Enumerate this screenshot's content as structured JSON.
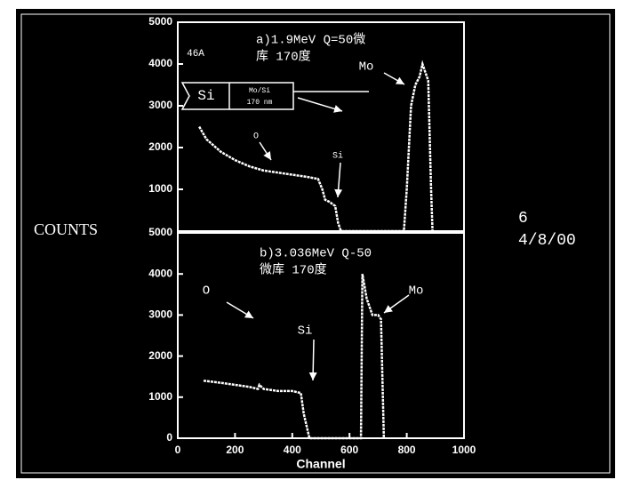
{
  "chart_data": [
    {
      "type": "line",
      "title": "a)1.9MeV Q=50微",
      "subtitle": "库    170度",
      "ylabel": "COUNTS",
      "annotations": [
        "46A",
        "Si",
        "Mo/Si",
        "170 nm",
        "Mo",
        "O",
        "Si"
      ],
      "xlim": [
        0,
        1000
      ],
      "ylim": [
        0,
        5000
      ],
      "yticks": [
        1000,
        2000,
        3000,
        4000,
        5000
      ],
      "series": [
        {
          "color": "#ffffff",
          "x": [
            75,
            100,
            150,
            200,
            250,
            300,
            350,
            400,
            450,
            490,
            505,
            515,
            530,
            550,
            560,
            570,
            790,
            800,
            815,
            830,
            845,
            855,
            865,
            875,
            885,
            890
          ],
          "values": [
            2500,
            2200,
            1900,
            1700,
            1550,
            1450,
            1400,
            1350,
            1300,
            1250,
            1000,
            750,
            700,
            600,
            200,
            0,
            0,
            1000,
            3000,
            3500,
            3700,
            4000,
            3800,
            3600,
            1000,
            0
          ]
        }
      ]
    },
    {
      "type": "line",
      "title": "b)3.036MeV Q-50",
      "subtitle": "微库 170度",
      "xlabel": "Channel",
      "annotations": [
        "O",
        "Si",
        "Mo"
      ],
      "xlim": [
        0,
        1000
      ],
      "xticks": [
        0,
        200,
        400,
        600,
        800,
        1000
      ],
      "ylim": [
        0,
        5000
      ],
      "yticks": [
        0,
        1000,
        2000,
        3000,
        4000,
        5000
      ],
      "series": [
        {
          "color": "#ffffff",
          "x": [
            90,
            150,
            200,
            250,
            280,
            285,
            300,
            350,
            400,
            430,
            440,
            450,
            460,
            640,
            645,
            660,
            680,
            700,
            710,
            720
          ],
          "values": [
            1400,
            1350,
            1300,
            1250,
            1200,
            1300,
            1200,
            1150,
            1150,
            1100,
            600,
            300,
            0,
            0,
            4000,
            3400,
            3000,
            3000,
            2900,
            0
          ]
        }
      ]
    }
  ],
  "side_note": [
    "6",
    "4/8/00"
  ]
}
